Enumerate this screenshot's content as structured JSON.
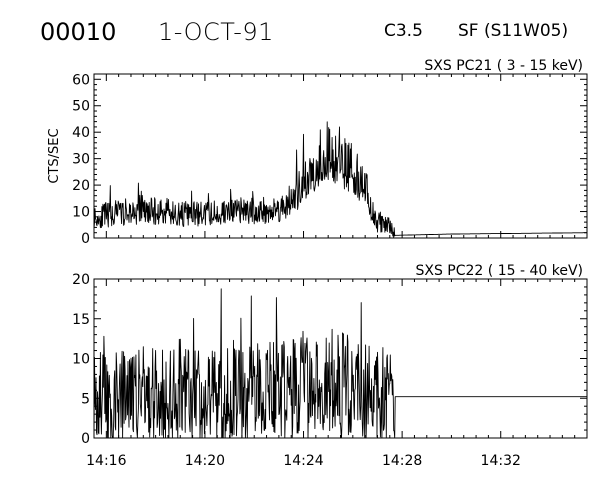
{
  "header": {
    "event_id": "00010",
    "date": "1-OCT-91",
    "flare_class": "C3.5",
    "flare_type_location": "SF (S11W05)"
  },
  "colors": {
    "background": "#ffffff",
    "trace": "#000000"
  },
  "chart_data": [
    {
      "type": "line",
      "channel_label": "SXS PC21  (  3 - 15 keV)",
      "ylabel": "CTS/SEC",
      "xlabel": "",
      "x_ticks": [
        "14:16",
        "14:20",
        "14:24",
        "14:28",
        "14:32"
      ],
      "x_range": [
        "14:15.5",
        "14:35.5"
      ],
      "ylim": [
        0,
        62
      ],
      "y_ticks": [
        "0",
        "10",
        "20",
        "30",
        "40",
        "50",
        "60"
      ],
      "series": [
        {
          "x": [
            "14:15.5",
            "14:17",
            "14:18",
            "14:19",
            "14:20",
            "14:21",
            "14:22",
            "14:23",
            "14:23.5",
            "14:24",
            "14:24.5",
            "14:25",
            "14:25.5",
            "14:26",
            "14:26.5",
            "14:26.8",
            "14:27",
            "14:27.5",
            "14:27.7",
            "14:30",
            "14:35.5"
          ],
          "y": [
            7,
            9,
            9,
            8,
            8,
            9,
            9,
            10,
            13,
            18,
            26,
            30,
            28,
            24,
            18,
            8,
            5,
            4,
            1,
            1.5,
            2
          ]
        }
      ]
    },
    {
      "type": "line",
      "channel_label": "SXS PC22  ( 15 - 40 keV)",
      "ylabel": "",
      "xlabel": "",
      "x_ticks": [
        "14:16",
        "14:20",
        "14:24",
        "14:28",
        "14:32"
      ],
      "x_range": [
        "14:15.5",
        "14:35.5"
      ],
      "ylim": [
        0,
        20
      ],
      "y_ticks": [
        "0",
        "5",
        "10",
        "15",
        "20"
      ],
      "series": [
        {
          "x": [
            "14:15.5",
            "14:18",
            "14:21",
            "14:23",
            "14:24",
            "14:25",
            "14:26",
            "14:27",
            "14:27.7",
            "14:30",
            "14:35.5"
          ],
          "y": [
            5.2,
            5.5,
            5.5,
            6,
            7,
            7.5,
            6.5,
            5.5,
            5.2,
            5.2,
            5.2
          ]
        }
      ]
    }
  ]
}
